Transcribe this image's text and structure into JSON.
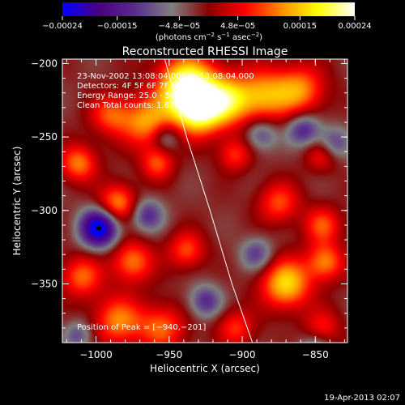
{
  "chart_data": {
    "type": "heatmap",
    "title": "Reconstructed RHESSI Image",
    "xlabel": "Heliocentric X (arcsec)",
    "ylabel": "Heliocentric Y (arcsec)",
    "xlim": [
      -1023,
      -828
    ],
    "ylim": [
      -390,
      -197
    ],
    "x_ticks": [
      -1000,
      -950,
      -900,
      -850
    ],
    "x_tick_labels": [
      "−1000",
      "−950",
      "−900",
      "−850"
    ],
    "y_ticks": [
      -200,
      -250,
      -300,
      -350
    ],
    "y_tick_labels": [
      "−200",
      "−250",
      "−300",
      "−350"
    ],
    "colorbar": {
      "range": [
        -0.00024,
        0.00024
      ],
      "tick_values": [
        -0.00024,
        -0.00015,
        -4.8e-05,
        4.8e-05,
        0.00015,
        0.00024
      ],
      "tick_labels": [
        "−0.00024",
        "−0.00015",
        "−4.8e−05",
        "4.8e−05",
        "0.00015",
        "0.00024"
      ],
      "units_base": "(photons cm",
      "units_exp1": "−2",
      "units_mid": " s",
      "units_exp2": "−1",
      "units_mid2": " asec",
      "units_exp3": "−2",
      "units_end": ")",
      "colormap": [
        "#0000ff",
        "#4b0082",
        "#5a2d8f",
        "#808080",
        "#8b0000",
        "#ff0000",
        "#ff8c00",
        "#ffff00",
        "#ffffff"
      ]
    },
    "peak": {
      "x": -940,
      "y": -201
    },
    "minimum_marker": {
      "x": -998,
      "y": -312
    },
    "limb_curve": [
      [
        -953,
        -197
      ],
      [
        -938,
        -250
      ],
      [
        -922,
        -300
      ],
      [
        -907,
        -350
      ],
      [
        -893,
        -390
      ]
    ],
    "blobs": [
      {
        "x": -938,
        "y": -215,
        "amp": 1.0,
        "r": 14
      },
      {
        "x": -930,
        "y": -232,
        "amp": 0.85,
        "r": 12
      },
      {
        "x": -910,
        "y": -225,
        "amp": 0.65,
        "r": 12
      },
      {
        "x": -885,
        "y": -222,
        "amp": 0.6,
        "r": 13
      },
      {
        "x": -860,
        "y": -218,
        "amp": 0.55,
        "r": 12
      },
      {
        "x": -965,
        "y": -240,
        "amp": 0.6,
        "r": 12
      },
      {
        "x": -990,
        "y": -235,
        "amp": 0.45,
        "r": 10
      },
      {
        "x": -1012,
        "y": -268,
        "amp": 0.55,
        "r": 9
      },
      {
        "x": -985,
        "y": -295,
        "amp": 0.6,
        "r": 9
      },
      {
        "x": -958,
        "y": -268,
        "amp": 0.45,
        "r": 8
      },
      {
        "x": -975,
        "y": -335,
        "amp": 0.55,
        "r": 10
      },
      {
        "x": -938,
        "y": -327,
        "amp": 0.45,
        "r": 9
      },
      {
        "x": -905,
        "y": -262,
        "amp": 0.4,
        "r": 8
      },
      {
        "x": -875,
        "y": -295,
        "amp": 0.45,
        "r": 10
      },
      {
        "x": -845,
        "y": -262,
        "amp": 0.4,
        "r": 8
      },
      {
        "x": -845,
        "y": -310,
        "amp": 0.45,
        "r": 9
      },
      {
        "x": -870,
        "y": -350,
        "amp": 0.75,
        "r": 12
      },
      {
        "x": -843,
        "y": -335,
        "amp": 0.55,
        "r": 9
      },
      {
        "x": -1010,
        "y": -345,
        "amp": 0.5,
        "r": 10
      },
      {
        "x": -985,
        "y": -375,
        "amp": 0.55,
        "r": 12
      },
      {
        "x": -955,
        "y": -380,
        "amp": 0.5,
        "r": 11
      },
      {
        "x": -905,
        "y": -380,
        "amp": 0.4,
        "r": 9
      },
      {
        "x": -845,
        "y": -380,
        "amp": 0.35,
        "r": 9
      },
      {
        "x": -998,
        "y": -312,
        "amp": -1.0,
        "r": 9
      },
      {
        "x": -965,
        "y": -303,
        "amp": -0.45,
        "r": 8
      },
      {
        "x": -952,
        "y": -250,
        "amp": -0.35,
        "r": 7
      },
      {
        "x": -887,
        "y": -248,
        "amp": -0.4,
        "r": 8
      },
      {
        "x": -858,
        "y": -245,
        "amp": -0.5,
        "r": 8
      },
      {
        "x": -838,
        "y": -255,
        "amp": -0.45,
        "r": 8
      },
      {
        "x": -925,
        "y": -362,
        "amp": -0.45,
        "r": 8
      },
      {
        "x": -890,
        "y": -330,
        "amp": -0.4,
        "r": 8
      },
      {
        "x": -1012,
        "y": -385,
        "amp": -0.35,
        "r": 7
      },
      {
        "x": -850,
        "y": -395,
        "amp": -0.35,
        "r": 8
      }
    ]
  },
  "overlay": {
    "line1": "23-Nov-2002 13:08:04.000 to 13:08:04.000",
    "line2": "Detectors: 4F 5F 6F 7F 8F, Att 0",
    "line3": "Energy Range: 25.0 - 50.0 keV",
    "line4": "Clean     Total counts: 1.67E+03",
    "peak_text": "Position of Peak = [−940,−201]"
  },
  "footer": {
    "date": "19-Apr-2013 02:07"
  }
}
